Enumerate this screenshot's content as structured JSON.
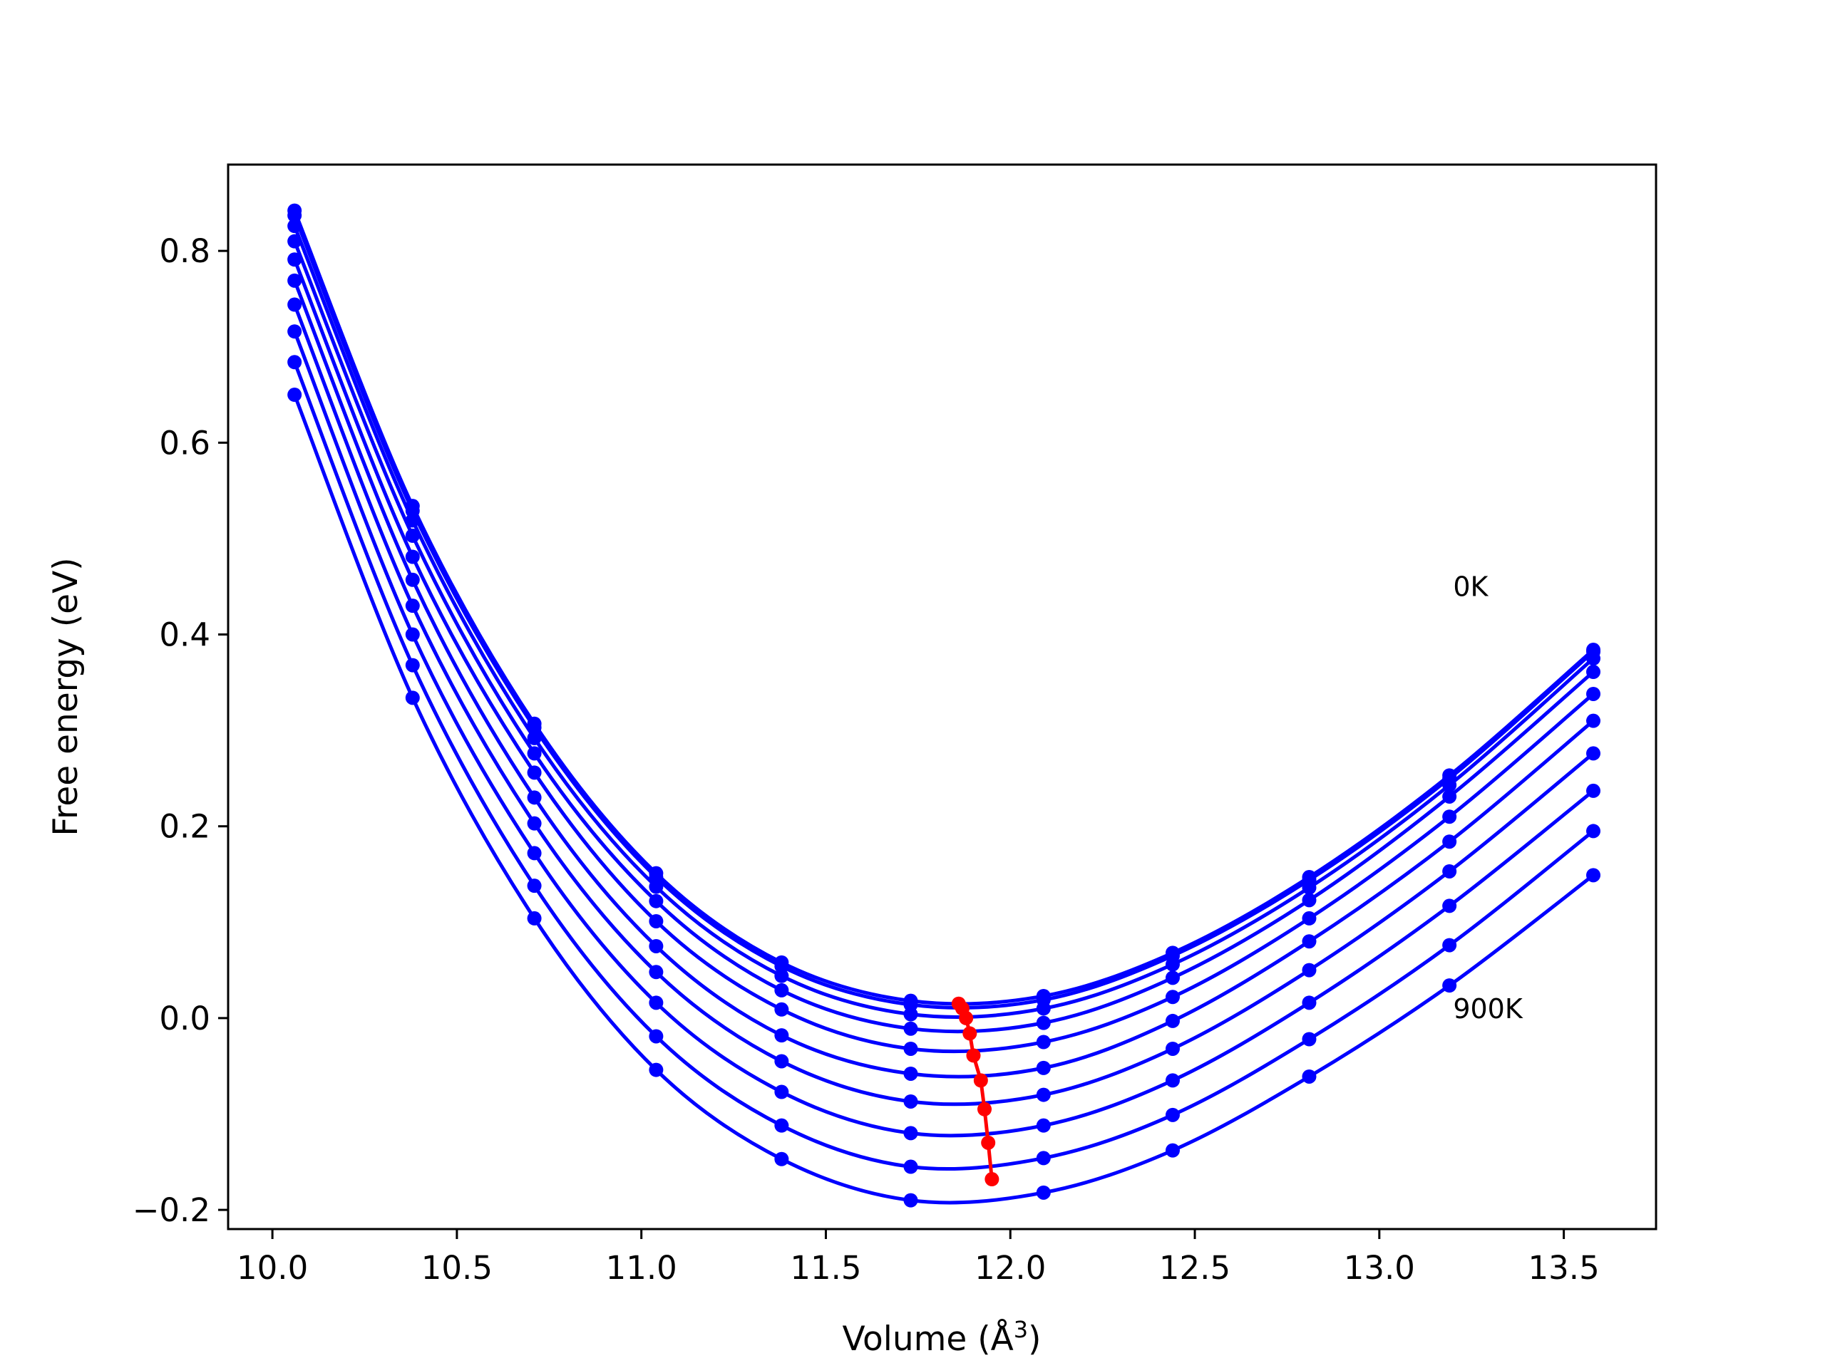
{
  "chart_data": {
    "type": "line",
    "title": "",
    "xlabel": "Volume (Å",
    "xlabel_sup": "3",
    "xlabel_close": ")",
    "ylabel": "Free energy (eV)",
    "xlim": [
      9.88,
      13.75
    ],
    "ylim": [
      -0.22,
      0.89
    ],
    "xticks": [
      {
        "value": 10.0,
        "label": "10.0"
      },
      {
        "value": 10.5,
        "label": "10.5"
      },
      {
        "value": 11.0,
        "label": "11.0"
      },
      {
        "value": 11.5,
        "label": "11.5"
      },
      {
        "value": 12.0,
        "label": "12.0"
      },
      {
        "value": 12.5,
        "label": "12.5"
      },
      {
        "value": 13.0,
        "label": "13.0"
      },
      {
        "value": 13.5,
        "label": "13.5"
      }
    ],
    "yticks": [
      {
        "value": -0.2,
        "label": "−0.2"
      },
      {
        "value": 0.0,
        "label": "0.0"
      },
      {
        "value": 0.2,
        "label": "0.2"
      },
      {
        "value": 0.4,
        "label": "0.4"
      },
      {
        "value": 0.6,
        "label": "0.6"
      },
      {
        "value": 0.8,
        "label": "0.8"
      }
    ],
    "grid": false,
    "legend": "none",
    "annotations": [
      {
        "text": "0K",
        "x": 13.2,
        "y": 0.44
      },
      {
        "text": "900K",
        "x": 13.2,
        "y": 0.0
      }
    ],
    "series_color": "#0000ff",
    "min_curve_color": "#ff0000",
    "volumes": [
      10.06,
      10.38,
      10.71,
      11.04,
      11.38,
      11.73,
      12.09,
      12.44,
      12.81,
      13.19,
      13.58
    ],
    "series": [
      {
        "values": [
          0.842,
          0.534,
          0.307,
          0.151,
          0.058,
          0.018,
          0.023,
          0.068,
          0.147,
          0.253,
          0.384
        ]
      },
      {
        "values": [
          0.837,
          0.529,
          0.303,
          0.147,
          0.054,
          0.014,
          0.019,
          0.065,
          0.144,
          0.25,
          0.382
        ]
      },
      {
        "values": [
          0.826,
          0.519,
          0.292,
          0.137,
          0.044,
          0.004,
          0.01,
          0.056,
          0.136,
          0.243,
          0.375
        ]
      },
      {
        "values": [
          0.81,
          0.503,
          0.276,
          0.122,
          0.029,
          -0.011,
          -0.005,
          0.042,
          0.123,
          0.231,
          0.361
        ]
      },
      {
        "values": [
          0.791,
          0.481,
          0.256,
          0.101,
          0.009,
          -0.032,
          -0.025,
          0.022,
          0.104,
          0.21,
          0.338
        ]
      },
      {
        "values": [
          0.769,
          0.457,
          0.23,
          0.075,
          -0.018,
          -0.058,
          -0.052,
          -0.003,
          0.08,
          0.184,
          0.31
        ]
      },
      {
        "values": [
          0.744,
          0.43,
          0.203,
          0.048,
          -0.045,
          -0.087,
          -0.08,
          -0.032,
          0.05,
          0.153,
          0.276
        ]
      },
      {
        "values": [
          0.716,
          0.4,
          0.172,
          0.016,
          -0.077,
          -0.12,
          -0.112,
          -0.065,
          0.016,
          0.117,
          0.237
        ]
      },
      {
        "values": [
          0.684,
          0.368,
          0.138,
          -0.019,
          -0.112,
          -0.155,
          -0.146,
          -0.101,
          -0.022,
          0.076,
          0.195
        ]
      },
      {
        "values": [
          0.65,
          0.334,
          0.104,
          -0.054,
          -0.147,
          -0.19,
          -0.182,
          -0.138,
          -0.061,
          0.034,
          0.149
        ]
      }
    ],
    "min_curve": {
      "x": [
        11.86,
        11.87,
        11.88,
        11.89,
        11.9,
        11.92,
        11.93,
        11.94,
        11.95
      ],
      "y": [
        0.015,
        0.01,
        0.0,
        -0.016,
        -0.039,
        -0.065,
        -0.095,
        -0.13,
        -0.168
      ]
    }
  }
}
